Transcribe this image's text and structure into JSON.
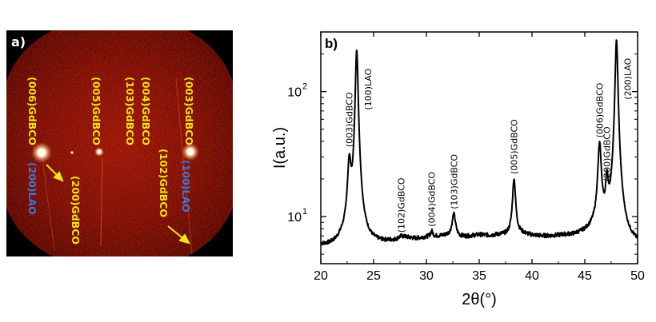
{
  "panel_a": {
    "tag": "a)",
    "labels": [
      {
        "text": "(006)GdBCO",
        "color": "#f2e21a"
      },
      {
        "text": "(005)GdBCO",
        "color": "#f2e21a"
      },
      {
        "text": "(103)GdBCO",
        "color": "#f2e21a"
      },
      {
        "text": "(004)GdBCO",
        "color": "#f2e21a"
      },
      {
        "text": "(003)GdBCO",
        "color": "#f2e21a"
      },
      {
        "text": "(200)LAO",
        "color": "#3b78d8"
      },
      {
        "text": "(200)GdBCO",
        "color": "#f2e21a"
      },
      {
        "text": "(102)GdBCO",
        "color": "#f2e21a"
      },
      {
        "text": "(100)LAO",
        "color": "#3b78d8"
      }
    ]
  },
  "chart_data": {
    "type": "line",
    "tag": "b)",
    "xlabel": "2θ(°)",
    "ylabel": "I(a.u.)",
    "yscale": "log",
    "xlim": [
      20,
      50
    ],
    "ylim": [
      4.2,
      300
    ],
    "xticks": [
      20,
      25,
      30,
      35,
      40,
      45,
      50
    ],
    "yticks": [
      {
        "value": 10,
        "base": "10",
        "exp": "1"
      },
      {
        "value": 100,
        "base": "10",
        "exp": "2"
      }
    ],
    "line_color": "#000000",
    "baseline": [
      [
        20,
        5.8
      ],
      [
        20.8,
        5.7
      ],
      [
        21.5,
        5.8
      ],
      [
        22,
        6.1
      ],
      [
        23.5,
        5.6
      ],
      [
        25,
        5.9
      ],
      [
        26,
        6.1
      ],
      [
        27,
        6.3
      ],
      [
        28,
        6.7
      ],
      [
        29,
        6.6
      ],
      [
        30,
        6.8
      ],
      [
        31,
        6.9
      ],
      [
        32,
        7.0
      ],
      [
        33,
        6.8
      ],
      [
        34,
        6.9
      ],
      [
        35,
        7.1
      ],
      [
        36,
        7.0
      ],
      [
        37,
        7.1
      ],
      [
        38,
        7.0
      ],
      [
        39,
        7.2
      ],
      [
        40,
        7.0
      ],
      [
        41,
        6.9
      ],
      [
        42,
        6.9
      ],
      [
        43,
        7.0
      ],
      [
        44,
        7.0
      ],
      [
        45,
        7.3
      ],
      [
        45.8,
        7.7
      ],
      [
        47.5,
        7.5
      ],
      [
        48.5,
        6.5
      ],
      [
        49,
        6.0
      ],
      [
        49.5,
        5.9
      ],
      [
        50,
        5.8
      ]
    ],
    "peaks": [
      {
        "x": 22.7,
        "height": 26,
        "width": 0.16,
        "label": "(003)GdBCO",
        "label_color": "#000000"
      },
      {
        "x": 23.4,
        "height": 215,
        "width": 0.12,
        "label": "(100)LAO",
        "label_color": "#e3262a"
      },
      {
        "x": 27.6,
        "height": 6.8,
        "width": 0.25,
        "label": "(102)GdBCO",
        "label_color": "#000000"
      },
      {
        "x": 30.5,
        "height": 7.6,
        "width": 0.12,
        "label": "(004)GdBCO",
        "label_color": "#000000"
      },
      {
        "x": 32.6,
        "height": 10.5,
        "width": 0.18,
        "label": "(103)GdBCO",
        "label_color": "#000000"
      },
      {
        "x": 38.3,
        "height": 20,
        "width": 0.15,
        "label": "(005)GdBCO",
        "label_color": "#000000"
      },
      {
        "x": 46.4,
        "height": 38,
        "width": 0.16,
        "label": "(006)GdBCO",
        "label_color": "#000000"
      },
      {
        "x": 47.1,
        "height": 18,
        "width": 0.12,
        "label": "(200)GdBCO",
        "label_color": "#000000"
      },
      {
        "x": 48.0,
        "height": 260,
        "width": 0.12,
        "label": "(200)LAO",
        "label_color": "#e3262a"
      }
    ]
  }
}
